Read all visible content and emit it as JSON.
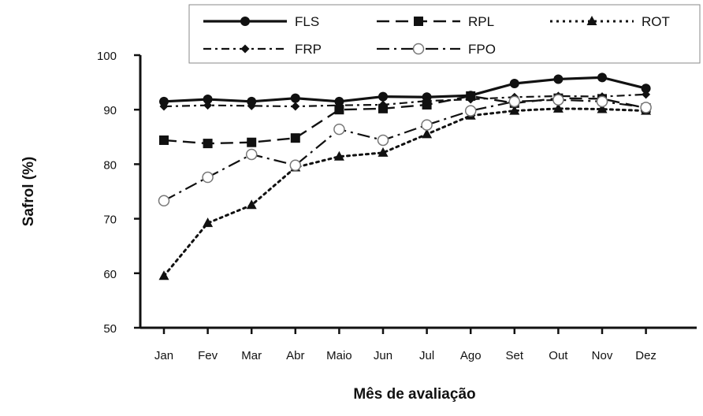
{
  "chart_data": {
    "type": "line",
    "title": "",
    "xlabel": "Mês de avaliação",
    "ylabel": "Safrol (%)",
    "categories": [
      "Jan",
      "Fev",
      "Mar",
      "Abr",
      "Maio",
      "Jun",
      "Jul",
      "Ago",
      "Set",
      "Out",
      "Nov",
      "Dez"
    ],
    "ylim": [
      50,
      100
    ],
    "yticks": [
      "50",
      "60",
      "70",
      "80",
      "90",
      "100"
    ],
    "grid": false,
    "legend_position": "top-right",
    "series": [
      {
        "name": "FLS",
        "color": "#111111",
        "dash": "solid",
        "marker": "circle",
        "values": [
          91.5,
          91.9,
          91.5,
          92.1,
          91.5,
          92.4,
          92.3,
          92.6,
          94.8,
          95.6,
          95.9,
          93.9
        ]
      },
      {
        "name": "RPL",
        "color": "#111111",
        "dash": "longdash",
        "marker": "square",
        "values": [
          84.4,
          83.8,
          84.0,
          84.8,
          90.0,
          90.2,
          90.9,
          92.5,
          91.2,
          92.1,
          92.0,
          90.3
        ]
      },
      {
        "name": "ROT",
        "color": "#111111",
        "dash": "dotted",
        "marker": "triangle",
        "values": [
          59.5,
          69.2,
          72.5,
          79.4,
          81.4,
          82.1,
          85.5,
          88.9,
          89.8,
          90.2,
          90.1,
          89.8
        ]
      },
      {
        "name": "FRP",
        "color": "#111111",
        "dash": "dashdot",
        "marker": "diamond",
        "values": [
          90.6,
          90.8,
          90.7,
          90.6,
          90.8,
          90.9,
          91.6,
          91.9,
          92.3,
          92.5,
          92.4,
          92.8
        ]
      },
      {
        "name": "FPO",
        "color": "#111111",
        "dash": "longdashdot",
        "marker": "open-circle",
        "values": [
          73.3,
          77.6,
          81.8,
          79.8,
          86.4,
          84.4,
          87.2,
          89.8,
          91.5,
          91.8,
          91.5,
          90.4
        ]
      }
    ]
  }
}
